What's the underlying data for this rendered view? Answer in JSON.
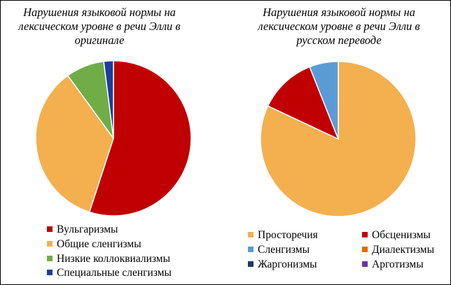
{
  "chart_data": [
    {
      "type": "pie",
      "title": "Нарушения языковой нормы на лексическом уровне в речи Элли в оригинале",
      "legend_position": "bottom",
      "series": [
        {
          "name": "Вульгаризмы",
          "value": 55,
          "color": "#C00000"
        },
        {
          "name": "Общие сленгизмы",
          "value": 35,
          "color": "#F4B04F"
        },
        {
          "name": "Низкие коллоквиализмы",
          "value": 8,
          "color": "#70AD47"
        },
        {
          "name": "Специальные сленгизмы",
          "value": 2,
          "color": "#1F3C99"
        }
      ]
    },
    {
      "type": "pie",
      "title": "Нарушения языковой нормы на лексическом уровне в речи Элли в русском переводе",
      "legend_position": "bottom",
      "series": [
        {
          "name": "Просторечия",
          "value": 82,
          "color": "#F4B04F"
        },
        {
          "name": "Обсценизмы",
          "value": 12,
          "color": "#C00000"
        },
        {
          "name": "Сленгизмы",
          "value": 6,
          "color": "#5B9BD5"
        },
        {
          "name": "Диалектизмы",
          "value": 0,
          "color": "#E36C0A"
        },
        {
          "name": "Жаргонизмы",
          "value": 0,
          "color": "#1F3864"
        },
        {
          "name": "Арготизмы",
          "value": 0,
          "color": "#7030A0"
        }
      ]
    }
  ]
}
